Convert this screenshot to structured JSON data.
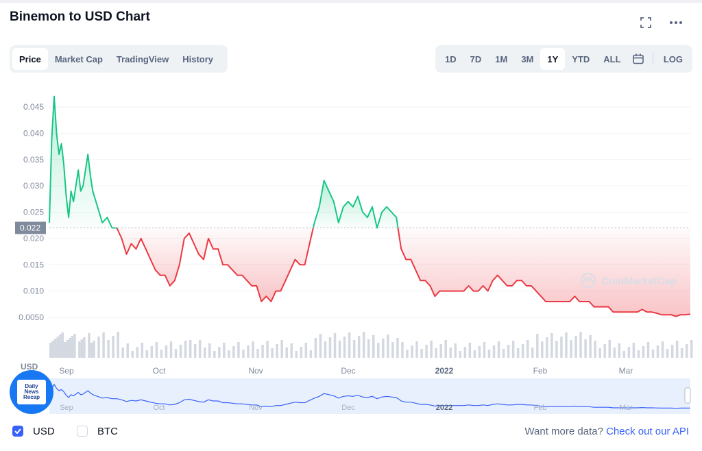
{
  "header": {
    "title": "Binemon to USD Chart",
    "expand_icon": "expand-icon",
    "more_icon": "more-dots-icon"
  },
  "tabs": [
    {
      "label": "Price",
      "active": true
    },
    {
      "label": "Market Cap",
      "active": false
    },
    {
      "label": "TradingView",
      "active": false
    },
    {
      "label": "History",
      "active": false
    }
  ],
  "ranges": [
    {
      "label": "1D",
      "active": false
    },
    {
      "label": "7D",
      "active": false
    },
    {
      "label": "1M",
      "active": false
    },
    {
      "label": "3M",
      "active": false
    },
    {
      "label": "1Y",
      "active": true
    },
    {
      "label": "YTD",
      "active": false
    },
    {
      "label": "ALL",
      "active": false
    }
  ],
  "range_extra": {
    "calendar_icon": "calendar-icon",
    "log_label": "LOG"
  },
  "chart_data": {
    "type": "line",
    "title": "Binemon to USD Chart",
    "xlabel": "",
    "ylabel": "USD",
    "x_ticks": [
      "Sep",
      "Oct",
      "Nov",
      "Dec",
      "2022",
      "Feb",
      "Mar"
    ],
    "y_ticks": [
      "0.045",
      "0.040",
      "0.035",
      "0.030",
      "0.025",
      "0.020",
      "0.015",
      "0.010",
      "0.0050"
    ],
    "ylim": [
      0.0,
      0.048
    ],
    "reference_price": 0.022,
    "reference_label": "0.022",
    "x_unit": "days from start of 1Y range",
    "series": [
      {
        "values": [
          [
            0,
            0.023
          ],
          [
            1,
            0.039
          ],
          [
            2,
            0.047
          ],
          [
            3,
            0.04
          ],
          [
            4,
            0.036
          ],
          [
            5,
            0.038
          ],
          [
            6,
            0.034
          ],
          [
            7,
            0.028
          ],
          [
            8,
            0.024
          ],
          [
            9,
            0.029
          ],
          [
            10,
            0.027
          ],
          [
            12,
            0.033
          ],
          [
            13,
            0.029
          ],
          [
            14,
            0.03
          ],
          [
            16,
            0.036
          ],
          [
            17,
            0.032
          ],
          [
            18,
            0.029
          ],
          [
            20,
            0.026
          ],
          [
            22,
            0.023
          ],
          [
            24,
            0.024
          ],
          [
            26,
            0.022
          ],
          [
            28,
            0.022
          ],
          [
            30,
            0.02
          ],
          [
            32,
            0.017
          ],
          [
            34,
            0.019
          ],
          [
            36,
            0.018
          ],
          [
            38,
            0.02
          ],
          [
            40,
            0.018
          ],
          [
            42,
            0.016
          ],
          [
            44,
            0.014
          ],
          [
            46,
            0.013
          ],
          [
            48,
            0.013
          ],
          [
            50,
            0.011
          ],
          [
            52,
            0.012
          ],
          [
            54,
            0.015
          ],
          [
            56,
            0.02
          ],
          [
            58,
            0.021
          ],
          [
            60,
            0.019
          ],
          [
            62,
            0.017
          ],
          [
            64,
            0.016
          ],
          [
            66,
            0.02
          ],
          [
            68,
            0.018
          ],
          [
            70,
            0.018
          ],
          [
            72,
            0.015
          ],
          [
            74,
            0.015
          ],
          [
            76,
            0.014
          ],
          [
            78,
            0.013
          ],
          [
            80,
            0.013
          ],
          [
            82,
            0.012
          ],
          [
            84,
            0.011
          ],
          [
            86,
            0.011
          ],
          [
            88,
            0.008
          ],
          [
            90,
            0.009
          ],
          [
            92,
            0.008
          ],
          [
            94,
            0.01
          ],
          [
            96,
            0.01
          ],
          [
            98,
            0.012
          ],
          [
            100,
            0.014
          ],
          [
            102,
            0.016
          ],
          [
            104,
            0.015
          ],
          [
            106,
            0.015
          ],
          [
            108,
            0.019
          ],
          [
            110,
            0.023
          ],
          [
            112,
            0.026
          ],
          [
            114,
            0.031
          ],
          [
            116,
            0.029
          ],
          [
            118,
            0.027
          ],
          [
            120,
            0.023
          ],
          [
            122,
            0.026
          ],
          [
            124,
            0.027
          ],
          [
            126,
            0.026
          ],
          [
            128,
            0.028
          ],
          [
            130,
            0.025
          ],
          [
            132,
            0.024
          ],
          [
            134,
            0.026
          ],
          [
            136,
            0.022
          ],
          [
            138,
            0.025
          ],
          [
            140,
            0.026
          ],
          [
            142,
            0.025
          ],
          [
            144,
            0.024
          ],
          [
            146,
            0.018
          ],
          [
            148,
            0.016
          ],
          [
            150,
            0.016
          ],
          [
            152,
            0.014
          ],
          [
            154,
            0.012
          ],
          [
            156,
            0.012
          ],
          [
            158,
            0.011
          ],
          [
            160,
            0.009
          ],
          [
            162,
            0.01
          ],
          [
            164,
            0.01
          ],
          [
            166,
            0.01
          ],
          [
            168,
            0.01
          ],
          [
            170,
            0.01
          ],
          [
            172,
            0.01
          ],
          [
            174,
            0.011
          ],
          [
            176,
            0.01
          ],
          [
            178,
            0.01
          ],
          [
            180,
            0.011
          ],
          [
            182,
            0.01
          ],
          [
            184,
            0.012
          ],
          [
            186,
            0.013
          ],
          [
            188,
            0.012
          ],
          [
            190,
            0.011
          ],
          [
            192,
            0.011
          ],
          [
            194,
            0.012
          ],
          [
            196,
            0.012
          ],
          [
            198,
            0.011
          ],
          [
            200,
            0.011
          ],
          [
            202,
            0.01
          ],
          [
            204,
            0.009
          ],
          [
            206,
            0.008
          ],
          [
            208,
            0.008
          ],
          [
            210,
            0.008
          ],
          [
            212,
            0.008
          ],
          [
            214,
            0.008
          ],
          [
            216,
            0.008
          ],
          [
            218,
            0.009
          ],
          [
            220,
            0.008
          ],
          [
            222,
            0.008
          ],
          [
            224,
            0.008
          ],
          [
            226,
            0.007
          ],
          [
            228,
            0.007
          ],
          [
            230,
            0.007
          ],
          [
            232,
            0.007
          ],
          [
            234,
            0.006
          ],
          [
            236,
            0.006
          ],
          [
            238,
            0.006
          ],
          [
            240,
            0.006
          ],
          [
            242,
            0.006
          ],
          [
            244,
            0.006
          ],
          [
            246,
            0.0065
          ],
          [
            248,
            0.006
          ],
          [
            250,
            0.006
          ],
          [
            252,
            0.0058
          ],
          [
            254,
            0.0055
          ],
          [
            256,
            0.0055
          ],
          [
            258,
            0.0055
          ],
          [
            260,
            0.0052
          ],
          [
            262,
            0.0055
          ],
          [
            264,
            0.0055
          ],
          [
            266,
            0.0056
          ]
        ]
      }
    ],
    "colors": {
      "up": "#16c784",
      "down": "#ea3943",
      "brush": "#3861fb"
    },
    "watermark": "CoinMarketCap",
    "volume_hint": "grey volume bars under price"
  },
  "footer": {
    "usd_label": "USD",
    "usd_checked": true,
    "btc_label": "BTC",
    "btc_checked": false,
    "api_prefix": "Want more data? ",
    "api_link": "Check out our API"
  },
  "badge": {
    "text": "Daily\nNews\nRecap"
  }
}
